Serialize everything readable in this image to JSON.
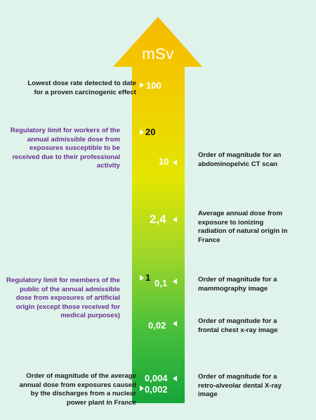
{
  "unit": "mSv",
  "colors": {
    "background": "#dff3ea",
    "arrow_top": "#f6b800",
    "arrow_mid": "#e3e600",
    "arrow_bottom": "#16a53a",
    "regulatory_text": "#6b2f92",
    "info_text": "#1a1a1a"
  },
  "markers": {
    "v100": "100",
    "v20": "20",
    "v10": "10",
    "v2_4": "2,4",
    "v1": "1",
    "v0_1": "0,1",
    "v0_02": "0,02",
    "v0_004": "0,004",
    "v0_002": "0,002"
  },
  "left_labels": {
    "l100": [
      "Lowest dose rate detected to date",
      "for a proven carcinogenic effect"
    ],
    "l20": [
      "Regulatory limit for workers of the",
      "annual admissible dose from",
      "exposures susceptible to be",
      "received due to their professional",
      "activity"
    ],
    "l1": [
      "Regulatory limit for members of the",
      "public of the annual admissible",
      "dose from exposures of artificial",
      "origin (except those received for",
      "medical purposes)"
    ],
    "l0_002": [
      "Order of magnitude of the average",
      "annual dose from exposures caused",
      "by the discharges from a nuclear",
      "power plant in France"
    ]
  },
  "right_labels": {
    "r10": [
      "Order of magnitude for an",
      "abdominopelvic CT scan"
    ],
    "r2_4": [
      "Average annual dose from",
      "exposure to ionizing",
      "radiation of natural origin in",
      "France"
    ],
    "r0_1": [
      "Order of magnitude for a",
      "mammography image"
    ],
    "r0_02": [
      "Order of magnitude for a",
      "frontal chest x-ray image"
    ],
    "r0_004": [
      "Order of magnitude for a",
      "retro-alveolar dental X-ray",
      "image"
    ]
  }
}
